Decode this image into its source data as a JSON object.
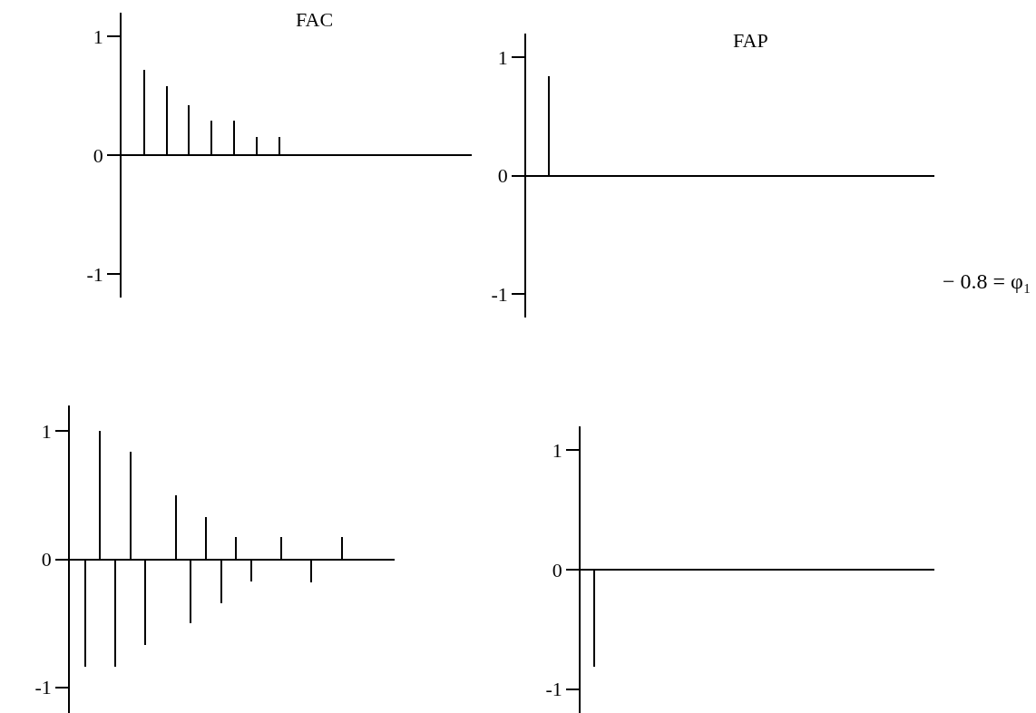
{
  "chart_data": [
    {
      "type": "bar",
      "title": "FAC",
      "categories": [
        null,
        null,
        null,
        null,
        null,
        null,
        null,
        null,
        null,
        null,
        null,
        null,
        null,
        null,
        null
      ],
      "values": [
        0.72,
        0.58,
        0.42,
        0.29,
        0.29,
        0.15,
        0.15,
        null,
        null,
        null,
        null,
        null,
        null,
        null,
        null
      ],
      "color": "#000000",
      "ylim": [
        -1.2,
        1.2
      ],
      "yticks": [
        -1,
        0,
        1
      ],
      "tick_labels": "y"
    },
    {
      "type": "bar",
      "title": "FAP",
      "categories": [
        null,
        null,
        null,
        null,
        null,
        null,
        null,
        null,
        null,
        null,
        null,
        null,
        null,
        null,
        null,
        null,
        null
      ],
      "values": [
        0.84,
        null,
        null,
        null,
        null,
        null,
        null,
        null,
        null,
        null,
        null,
        null,
        null,
        null,
        null,
        null,
        null
      ],
      "color": "#000000",
      "ylim": [
        -1.2,
        1.2
      ],
      "yticks": [
        -1,
        0,
        1
      ],
      "tick_labels": "y"
    },
    {
      "type": "bar",
      "categories": [
        null,
        null,
        null,
        null,
        null,
        null,
        null,
        null,
        null,
        null,
        null,
        null,
        null,
        null,
        null,
        null,
        null,
        null,
        null,
        null,
        null
      ],
      "values": [
        -0.84,
        1.0,
        -0.84,
        0.84,
        -0.67,
        null,
        0.5,
        -0.5,
        0.33,
        -0.34,
        0.17,
        -0.17,
        null,
        0.17,
        null,
        -0.18,
        null,
        0.17,
        null,
        null,
        null
      ],
      "color": "#000000",
      "ylim": [
        -1.2,
        1.2
      ],
      "yticks": [
        -1,
        0,
        1
      ],
      "tick_labels": "y"
    },
    {
      "type": "bar",
      "categories": [
        null,
        null,
        null,
        null,
        null,
        null,
        null,
        null,
        null,
        null,
        null,
        null,
        null,
        null,
        null,
        null,
        null,
        null,
        null,
        null,
        null,
        null,
        null,
        null,
        null
      ],
      "values": [
        -0.81,
        null,
        null,
        null,
        null,
        null,
        null,
        null,
        null,
        null,
        null,
        null,
        null,
        null,
        null,
        null,
        null,
        null,
        null,
        null,
        null,
        null,
        null,
        null,
        null
      ],
      "color": "#000000",
      "ylim": [
        -1.2,
        1.2
      ],
      "yticks": [
        -1,
        0,
        1
      ],
      "tick_labels": "y",
      "annotations": [
        "− 0.8 = φ₁"
      ]
    }
  ]
}
